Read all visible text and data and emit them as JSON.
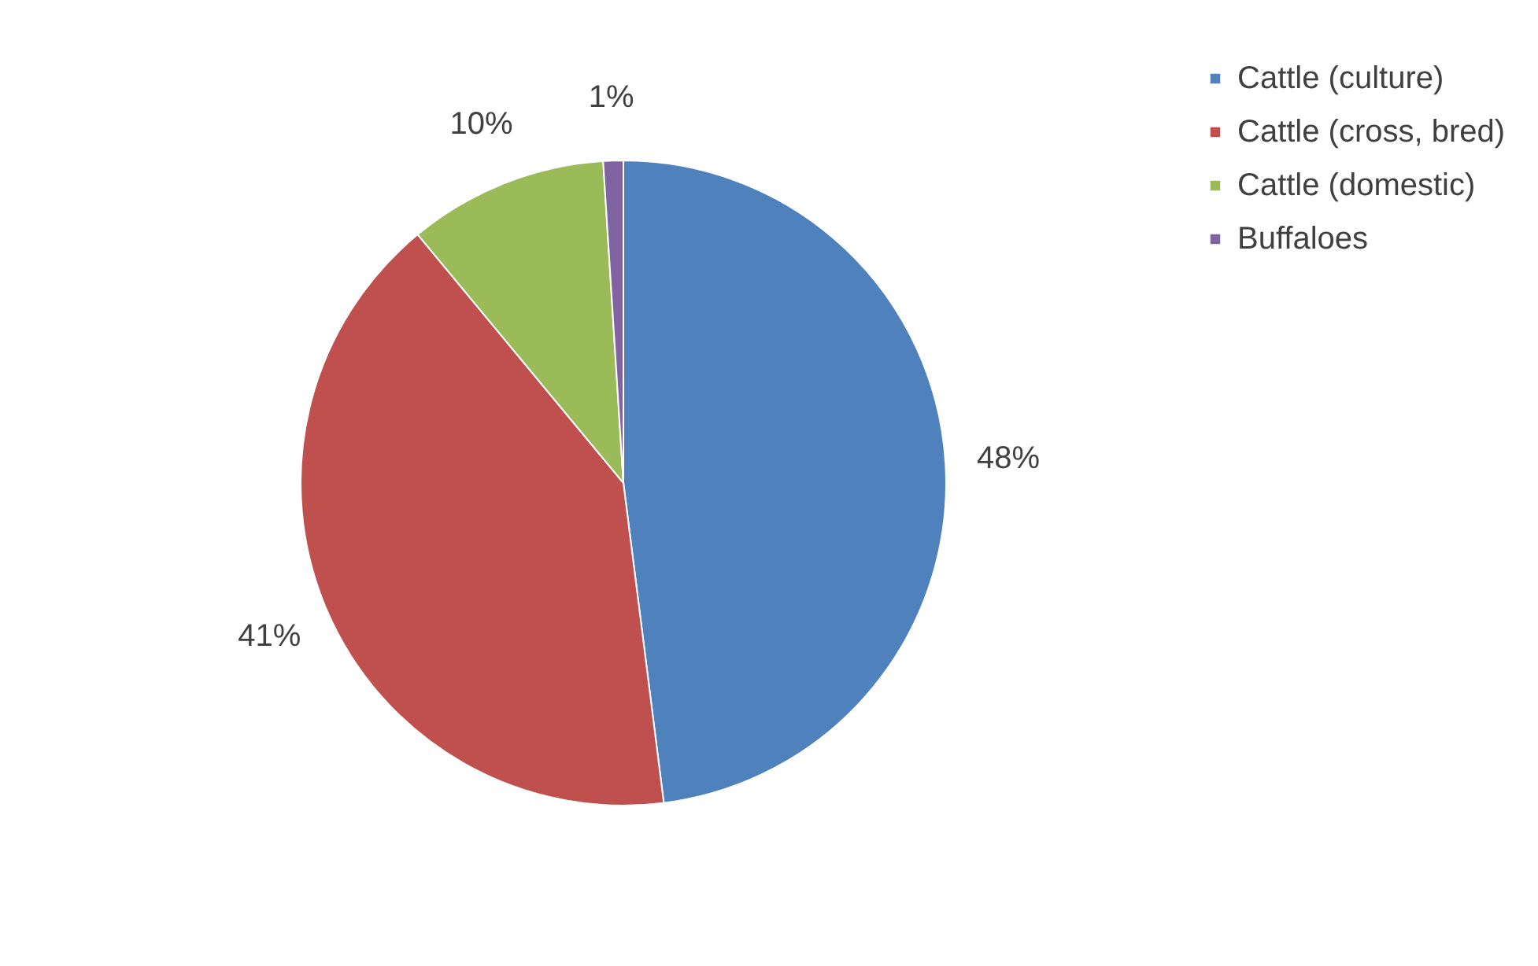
{
  "chart_data": {
    "type": "pie",
    "categories": [
      "Cattle (culture)",
      "Cattle (cross, bred)",
      "Cattle (domestic)",
      "Buffaloes"
    ],
    "values": [
      48,
      41,
      10,
      1
    ],
    "colors": [
      "#4f81bd",
      "#c0504d",
      "#9bbb59",
      "#8064a2"
    ],
    "value_labels": [
      "48%",
      "41%",
      "10%",
      "1%"
    ],
    "legend": "right"
  }
}
